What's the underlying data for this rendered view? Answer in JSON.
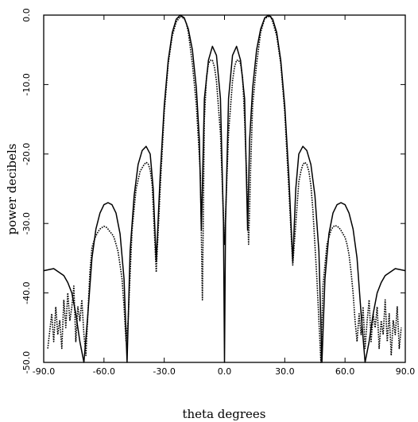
{
  "chart_data": {
    "type": "line",
    "title": "",
    "xlabel": "theta degrees",
    "ylabel": "power decibels",
    "xlim": [
      -90,
      90
    ],
    "ylim": [
      -50,
      0
    ],
    "grid": false,
    "x_ticks": [
      -90,
      -60,
      -30,
      0,
      30,
      60,
      90
    ],
    "x_tick_labels": [
      "-90.0",
      "-60.0",
      "-30.0",
      "0.0",
      "30.0",
      "60.0",
      "90.0"
    ],
    "y_ticks": [
      0,
      -10,
      -20,
      -30,
      -40,
      -50
    ],
    "y_tick_labels": [
      "0.0",
      "-10.0",
      "-20.0",
      "-30.0",
      "-40.0",
      "-50.0"
    ],
    "series": [
      {
        "style": "solid",
        "x": [
          -90,
          -85,
          -80,
          -78,
          -76,
          -74,
          -72,
          -70,
          -68,
          -66,
          -64,
          -62,
          -60,
          -58,
          -56,
          -54,
          -52,
          -50,
          -48.5,
          -47,
          -45,
          -43,
          -41,
          -39,
          -37,
          -35.5,
          -34,
          -32,
          -30,
          -28,
          -26,
          -24,
          -22,
          -20,
          -18,
          -16,
          -14,
          -12.5,
          -11.5,
          -10,
          -8,
          -6,
          -4,
          -2,
          -0.5,
          0,
          0.5,
          2,
          4,
          6,
          8,
          10,
          11.5,
          12.5,
          14,
          16,
          18,
          20,
          22,
          24,
          26,
          28,
          30,
          32,
          34,
          35.5,
          37,
          39,
          41,
          43,
          45,
          47,
          48.5,
          50,
          52,
          54,
          56,
          58,
          60,
          62,
          64,
          66,
          68,
          70,
          72,
          74,
          76,
          78,
          80,
          85,
          90
        ],
        "y": [
          -36.8,
          -36.5,
          -37.5,
          -38.5,
          -40.0,
          -43.0,
          -47.0,
          -50.0,
          -43.0,
          -35.0,
          -30.8,
          -28.5,
          -27.3,
          -27.0,
          -27.3,
          -28.5,
          -31.5,
          -38.0,
          -50.0,
          -34.0,
          -26.0,
          -21.5,
          -19.5,
          -18.9,
          -20.0,
          -25.0,
          -35.5,
          -23.0,
          -13.0,
          -6.5,
          -2.5,
          -0.6,
          0.0,
          -0.4,
          -2.0,
          -5.0,
          -10.5,
          -18.0,
          -31.0,
          -12.0,
          -6.5,
          -4.5,
          -5.8,
          -12.0,
          -30.0,
          -50.0,
          -30.0,
          -12.0,
          -5.8,
          -4.5,
          -6.5,
          -12.0,
          -31.0,
          -18.0,
          -10.5,
          -5.0,
          -2.0,
          -0.4,
          0.0,
          -0.6,
          -2.5,
          -6.5,
          -13.0,
          -23.0,
          -35.5,
          -25.0,
          -20.0,
          -18.9,
          -19.5,
          -21.5,
          -26.0,
          -34.0,
          -50.0,
          -38.0,
          -31.5,
          -28.5,
          -27.3,
          -27.0,
          -27.3,
          -28.5,
          -30.8,
          -35.0,
          -43.0,
          -50.0,
          -47.0,
          -43.0,
          -40.0,
          -38.5,
          -37.5,
          -36.5,
          -36.8
        ]
      },
      {
        "style": "dotted",
        "x": [
          -88,
          -86,
          -85,
          -84,
          -83,
          -82,
          -81,
          -80,
          -79,
          -78,
          -77,
          -76,
          -75,
          -74,
          -73,
          -72,
          -71,
          -70,
          -69,
          -68,
          -67,
          -66,
          -65,
          -64,
          -63,
          -62,
          -61,
          -60,
          -59,
          -58,
          -57,
          -56,
          -55,
          -54,
          -53,
          -52,
          -51,
          -50,
          -49,
          -48,
          -46,
          -44,
          -42,
          -40,
          -39,
          -38,
          -37,
          -36,
          -34,
          -32,
          -30,
          -28,
          -26,
          -24,
          -22,
          -20,
          -19,
          -18,
          -16,
          -14,
          -12,
          -11,
          -10,
          -9,
          -8,
          -7,
          -6,
          -5,
          -4,
          -2,
          0,
          2,
          4,
          5,
          6,
          7,
          8,
          9,
          10,
          11,
          12,
          12.5,
          13,
          14,
          16,
          18,
          20,
          22,
          23,
          24,
          26,
          28,
          30,
          32,
          34,
          36,
          37,
          38,
          39,
          40,
          41,
          42,
          43,
          44,
          46,
          48,
          49,
          50,
          51,
          52,
          53,
          54,
          55,
          56,
          57,
          58,
          59,
          60,
          61,
          62,
          63,
          64,
          65,
          66,
          67,
          68,
          69,
          70,
          71,
          72,
          73,
          74,
          75,
          76,
          77,
          78,
          79,
          80,
          81,
          82,
          83,
          84,
          85,
          86,
          87,
          88
        ],
        "y": [
          -48,
          -43,
          -47,
          -42,
          -46,
          -44,
          -48,
          -41,
          -45,
          -40,
          -44,
          -42,
          -39,
          -47,
          -42,
          -44,
          -41,
          -46,
          -49,
          -43,
          -37,
          -33.5,
          -32.5,
          -31.8,
          -31.2,
          -30.8,
          -30.6,
          -30.4,
          -30.5,
          -30.8,
          -31.2,
          -31.5,
          -32,
          -33,
          -34,
          -36,
          -38,
          -42,
          -47,
          -44,
          -31,
          -25,
          -22.5,
          -21.5,
          -21.2,
          -21.4,
          -22.3,
          -24.5,
          -37,
          -25,
          -14,
          -7,
          -3,
          -1,
          -0.2,
          -0.5,
          -1.2,
          -2.5,
          -7,
          -13,
          -23,
          -41,
          -15,
          -9,
          -7,
          -6.5,
          -6.5,
          -7.5,
          -9.5,
          -17,
          -33,
          -17,
          -9.5,
          -7.5,
          -6.5,
          -6.5,
          -7,
          -9,
          -15,
          -23,
          -33,
          -28,
          -22,
          -13,
          -7,
          -2.5,
          -0.5,
          -0.2,
          -0.2,
          -1,
          -3,
          -7,
          -14,
          -25,
          -36,
          -28,
          -24,
          -22.5,
          -21.5,
          -21.2,
          -21.5,
          -22.5,
          -24.5,
          -28,
          -38,
          -50,
          -39,
          -36,
          -33,
          -32,
          -31,
          -30.5,
          -30.3,
          -30.4,
          -30.6,
          -31,
          -31.5,
          -32,
          -33,
          -34.5,
          -37,
          -40,
          -44,
          -47,
          -43,
          -46,
          -42,
          -48,
          -44,
          -41,
          -47,
          -43,
          -45,
          -42,
          -48,
          -44,
          -46,
          -41,
          -47,
          -43,
          -49,
          -44,
          -46,
          -42,
          -48,
          -45
        ]
      }
    ]
  }
}
